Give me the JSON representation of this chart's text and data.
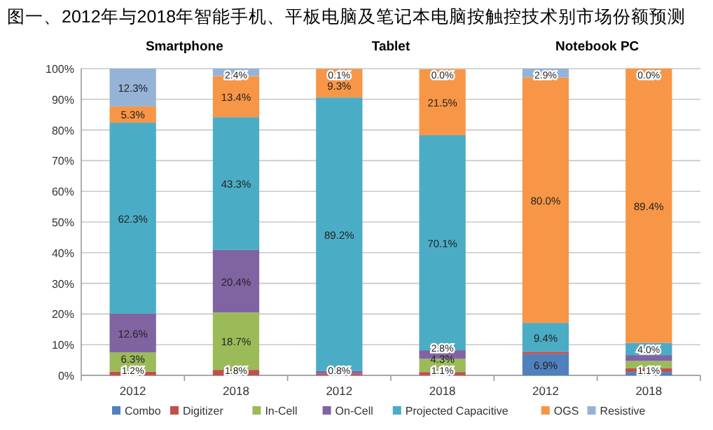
{
  "chart_data": {
    "type": "bar",
    "stacked": true,
    "title": "图一、2012年与2018年智能手机、平板电脑及笔记本电脑按触控技术别市场份额预测",
    "annotations": [
      "Smartphone",
      "Tablet",
      "Notebook PC"
    ],
    "categories": [
      "2012",
      "2018",
      "2012",
      "2018",
      "2012",
      "2018"
    ],
    "series": [
      {
        "name": "Combo",
        "color": "#4f81bd",
        "values": [
          0,
          0,
          0,
          0,
          6.9,
          1.1
        ],
        "value_labels": [
          null,
          null,
          null,
          null,
          "6.9%",
          "1.1%"
        ]
      },
      {
        "name": "Digitizer",
        "color": "#c0504d",
        "values": [
          1.2,
          1.8,
          0.6,
          1.1,
          0.8,
          1.2
        ],
        "value_labels": [
          "1.2%",
          "1.8%",
          null,
          "1.1%",
          null,
          null
        ]
      },
      {
        "name": "In-Cell",
        "color": "#9bbb59",
        "values": [
          6.3,
          18.7,
          0,
          4.3,
          0,
          2.4
        ],
        "value_labels": [
          "6.3%",
          "18.7%",
          null,
          "4.3%",
          null,
          null
        ]
      },
      {
        "name": "On-Cell",
        "color": "#8064a2",
        "values": [
          12.6,
          20.4,
          0.8,
          2.8,
          0,
          1.9
        ],
        "value_labels": [
          "12.6%",
          "20.4%",
          "0.8%",
          "2.8%",
          null,
          null
        ]
      },
      {
        "name": "Projected Capacitive",
        "color": "#4bacc6",
        "values": [
          62.3,
          43.3,
          89.2,
          70.1,
          9.4,
          4.0
        ],
        "value_labels": [
          "62.3%",
          "43.3%",
          "89.2%",
          "70.1%",
          "9.4%",
          "4.0%"
        ]
      },
      {
        "name": "OGS",
        "color": "#f79646",
        "values": [
          5.3,
          13.4,
          9.3,
          21.5,
          80.0,
          89.4
        ],
        "value_labels": [
          "5.3%",
          "13.4%",
          "9.3%",
          "21.5%",
          "80.0%",
          "89.4%"
        ]
      },
      {
        "name": "Resistive",
        "color": "#95b3d7",
        "values": [
          12.3,
          2.4,
          0.1,
          0.0,
          2.9,
          0.0
        ],
        "value_labels": [
          "12.3%",
          "2.4%",
          "0.1%",
          "0.0%",
          "2.9%",
          "0.0%"
        ]
      }
    ],
    "ylim": [
      0,
      100
    ],
    "yticks": [
      {
        "value": 0,
        "label": "0%"
      },
      {
        "value": 10,
        "label": "10%"
      },
      {
        "value": 20,
        "label": "20%"
      },
      {
        "value": 30,
        "label": "30%"
      },
      {
        "value": 40,
        "label": "40%"
      },
      {
        "value": 50,
        "label": "50%"
      },
      {
        "value": 60,
        "label": "60%"
      },
      {
        "value": 70,
        "label": "70%"
      },
      {
        "value": 80,
        "label": "80%"
      },
      {
        "value": 90,
        "label": "90%"
      },
      {
        "value": 100,
        "label": "100%"
      }
    ],
    "grid": "y",
    "legend": "bottom"
  }
}
